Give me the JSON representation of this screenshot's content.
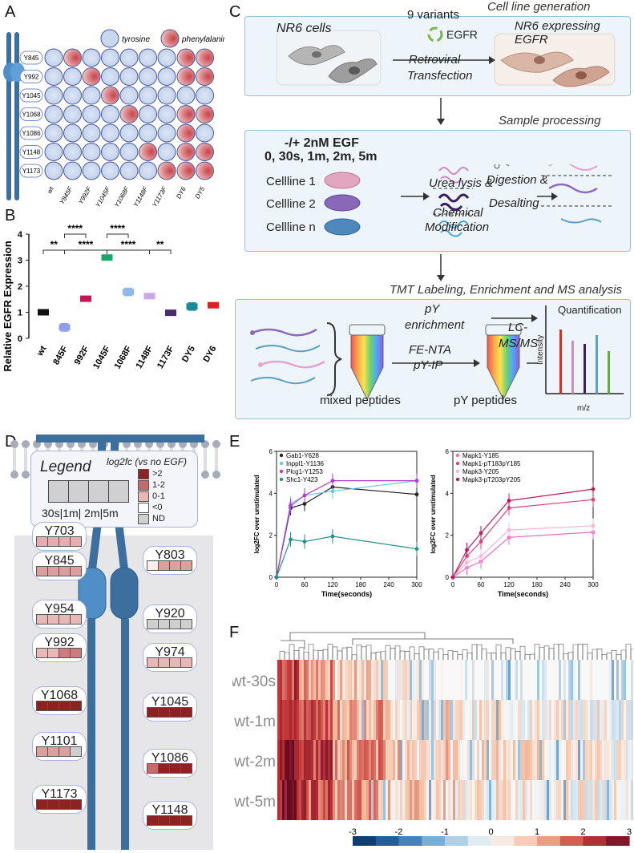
{
  "panels": {
    "A": "A",
    "B": "B",
    "C": "C",
    "D": "D",
    "E": "E",
    "F": "F"
  },
  "panelA": {
    "legend_tyrosine": "tyrosine",
    "legend_phenylalanine": "phenylalanine",
    "rows": [
      "Y845",
      "Y992",
      "Y1045",
      "Y1068",
      "Y1086",
      "Y1148",
      "Y1173"
    ],
    "cols": [
      "wt",
      "Y845F",
      "Y992F",
      "Y1045F",
      "Y1068F",
      "Y1148F",
      "Y1173F"
    ],
    "extra_cols": [
      "DY6",
      "DY5"
    ],
    "colors": {
      "tyrosine": "#c9d7ee",
      "phenylalanine": "#c8434a"
    }
  },
  "panelB": {
    "chart_data": {
      "type": "box",
      "categories": [
        "wt",
        "845F",
        "992F",
        "1045F",
        "1068F",
        "1148F",
        "1173F",
        "DY5",
        "DY6"
      ],
      "values": [
        1.0,
        0.42,
        1.52,
        3.1,
        1.78,
        1.62,
        0.98,
        1.22,
        1.27
      ],
      "colors": [
        "#111111",
        "#8e9fe8",
        "#c2185b",
        "#1aa56b",
        "#8fb9ee",
        "#c9a7e8",
        "#4b2c6e",
        "#1a8a9a",
        "#e02020"
      ],
      "ylabel": "Relative EGFR Expression",
      "ylim": [
        0,
        4
      ],
      "yticks": [
        "0",
        "1",
        "2",
        "3",
        "4"
      ],
      "significance": [
        {
          "from": "wt",
          "to": "845F",
          "label": "**"
        },
        {
          "from": "845F",
          "to": "1045F",
          "label": "****"
        },
        {
          "from": "845F",
          "to": "992F",
          "label": "****"
        },
        {
          "from": "1045F",
          "to": "1068F",
          "label": "****"
        },
        {
          "from": "1045F",
          "to": "1148F",
          "label": "****"
        },
        {
          "from": "1148F",
          "to": "1173F",
          "label": "**"
        }
      ]
    }
  },
  "panelC": {
    "step1_title": "Cell line generation",
    "nr6_cells": "NR6 cells",
    "variants": "9 variants",
    "egfr": "EGFR",
    "retroviral1": "Retroviral",
    "retroviral2": "Transfection",
    "nr6_expr1": "NR6 expressing",
    "nr6_expr2": "EGFR",
    "step2_title": "Sample processing",
    "egf_line1": "-/+ 2nM EGF",
    "egf_line2": "0, 30s, 1m, 2m, 5m",
    "cellline1": "Cellline 1",
    "cellline2": "Cellline 2",
    "celllinen": "Cellline n",
    "urea1": "Urea lysis &",
    "urea2": "Chemical",
    "urea3": "Modification",
    "digest1": "Digestion &",
    "digest2": "Desalting",
    "step3_title": "TMT Labeling, Enrichment and MS analysis",
    "py_enrich1": "pY",
    "py_enrich2": "enrichment",
    "fe_nta": "FE-NTA",
    "py_ip": "pY-IP",
    "lc1": "LC-",
    "lc2": "MS/MS",
    "mixed": "mixed peptides",
    "py_peptides": "pY peptides",
    "quant": "Quantification",
    "intensity": "Intensity",
    "mz": "m/z"
  },
  "panelD": {
    "legend_title": "Legend",
    "legend_sub": "log2fc (vs no EGF)",
    "legend_time": "30s|1m| 2m|5m",
    "legend_items": [
      {
        "label": ">2",
        "color": "#8b2323"
      },
      {
        "label": "1-2",
        "color": "#c46a6a"
      },
      {
        "label": "0-1",
        "color": "#e7b8b4"
      },
      {
        "label": "<0",
        "color": "#ffffff"
      },
      {
        "label": "ND",
        "color": "#cfcfcf"
      }
    ],
    "sites_left": [
      {
        "label": "Y703",
        "colors": [
          "#e2aeb0",
          "#e2aeb0",
          "#e2aeb0",
          "#e2aeb0"
        ]
      },
      {
        "label": "Y845",
        "colors": [
          "#dc9ea0",
          "#dc9ea0",
          "#dc9ea0",
          "#dc9ea0"
        ]
      },
      {
        "label": "Y954",
        "colors": [
          "#e6b8b8",
          "#e6b8b8",
          "#e6b8b8",
          "#e6b8b8"
        ]
      },
      {
        "label": "Y992",
        "colors": [
          "#e6b8b8",
          "#e6b8b8",
          "#cc7b7e",
          "#cc7b7e"
        ]
      },
      {
        "label": "Y1068",
        "colors": [
          "#8b2323",
          "#8b2323",
          "#8b2323",
          "#8b2323"
        ]
      },
      {
        "label": "Y1101",
        "colors": [
          "#dca0a0",
          "#dca0a0",
          "#dca0a0",
          "#cfcfcf"
        ]
      },
      {
        "label": "Y1173",
        "colors": [
          "#8b2323",
          "#8b2323",
          "#8b2323",
          "#8b2323"
        ]
      }
    ],
    "sites_right": [
      {
        "label": "Y803",
        "colors": [
          "#fbeeee",
          "#dca0a0",
          "#dca0a0",
          "#dca0a0"
        ]
      },
      {
        "label": "Y920",
        "colors": [
          "#cfcfcf",
          "#cfcfcf",
          "#cfcfcf",
          "#cfcfcf"
        ]
      },
      {
        "label": "Y974",
        "colors": [
          "#e6b8b8",
          "#e6b8b8",
          "#e6b8b8",
          "#e6b8b8"
        ]
      },
      {
        "label": "Y1045",
        "colors": [
          "#8b2323",
          "#8b2323",
          "#8b2323",
          "#8b2323"
        ]
      },
      {
        "label": "Y1086",
        "colors": [
          "#c46a6a",
          "#8b2323",
          "#8b2323",
          "#8b2323"
        ]
      },
      {
        "label": "Y1148",
        "colors": [
          "#8b2323",
          "#8b2323",
          "#8b2323",
          "#8b2323"
        ]
      }
    ]
  },
  "panelE": {
    "chart_data": [
      {
        "type": "line",
        "x": [
          0,
          30,
          60,
          120,
          300
        ],
        "xlabel": "Time(seconds)",
        "ylabel": "log2FC over unstimulated",
        "xticks": [
          "0",
          "60",
          "120",
          "180",
          "240",
          "300"
        ],
        "yticks": [
          "0",
          "2",
          "4",
          "6"
        ],
        "ylim": [
          0,
          6
        ],
        "series": [
          {
            "name": "Gab1-Y628",
            "color": "#222222",
            "values": [
              0,
              3.3,
              3.5,
              4.3,
              3.95
            ]
          },
          {
            "name": "Inppl1-Y1136",
            "color": "#6cc6f0",
            "values": [
              0,
              3.5,
              3.9,
              4.1,
              4.6
            ]
          },
          {
            "name": "Plcg1-Y1253",
            "color": "#b43ad8",
            "values": [
              0,
              3.4,
              3.9,
              4.6,
              4.6
            ]
          },
          {
            "name": "Shc1-Y423",
            "color": "#2a8f8a",
            "values": [
              0,
              1.8,
              1.7,
              1.95,
              1.35
            ]
          }
        ]
      },
      {
        "type": "line",
        "x": [
          0,
          30,
          60,
          120,
          300
        ],
        "xlabel": "Time(seconds)",
        "ylabel": "log2FC over unstimulated",
        "xticks": [
          "0",
          "60",
          "120",
          "180",
          "240",
          "300"
        ],
        "yticks": [
          "0",
          "2",
          "4",
          "6"
        ],
        "ylim": [
          0,
          6
        ],
        "series": [
          {
            "name": "Mapk1-Y185",
            "color": "#f06bc7",
            "values": [
              0,
              0.45,
              0.75,
              1.9,
              2.15
            ]
          },
          {
            "name": "Mapk1-pT183pY185",
            "color": "#e6407a",
            "values": [
              0,
              1.0,
              1.7,
              3.3,
              3.7
            ]
          },
          {
            "name": "Mapk3-Y205",
            "color": "#f7b8dc",
            "values": [
              0,
              0.7,
              1.0,
              2.25,
              2.45
            ]
          },
          {
            "name": "Mapk3-pT203pY205",
            "color": "#c2185b",
            "values": [
              0,
              1.3,
              2.1,
              3.65,
              4.2
            ]
          }
        ]
      }
    ]
  },
  "panelF": {
    "chart_data": {
      "type": "heatmap",
      "rows": [
        "wt-30s",
        "wt-1m",
        "wt-2m",
        "wt-5m"
      ],
      "colorbar_ticks": [
        "-3",
        "-2",
        "-1",
        "0",
        "1",
        "2",
        "3"
      ],
      "range": [
        -3,
        3
      ]
    }
  }
}
